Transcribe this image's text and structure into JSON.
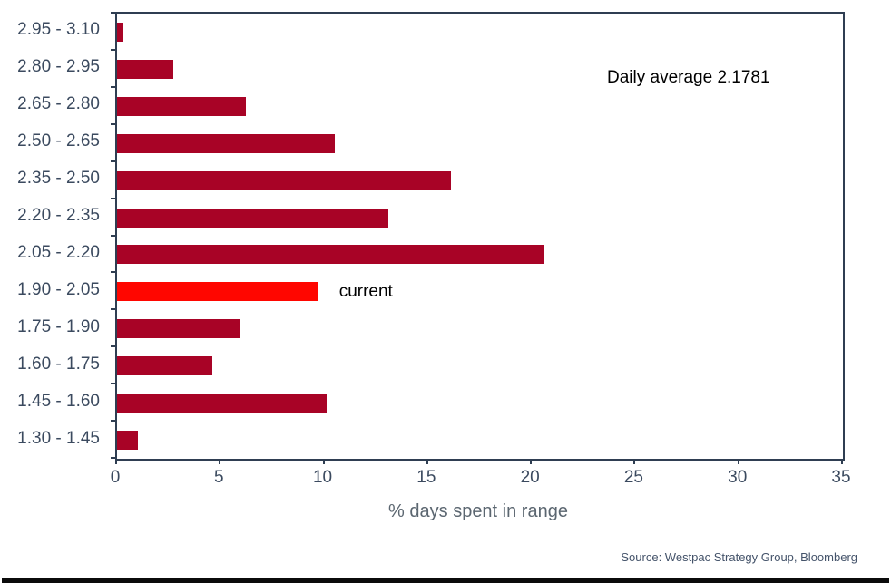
{
  "chart_data": {
    "type": "bar",
    "orientation": "horizontal",
    "title": "",
    "xlabel": "% days spent in range",
    "xlim": [
      0,
      35
    ],
    "x_ticks": [
      0,
      5,
      10,
      15,
      20,
      25,
      30,
      35
    ],
    "categories": [
      "2.95 - 3.10",
      "2.80 - 2.95",
      "2.65 - 2.80",
      "2.50 - 2.65",
      "2.35 - 2.50",
      "2.20 - 2.35",
      "2.05 - 2.20",
      "1.90 - 2.05",
      "1.75 - 1.90",
      "1.60 - 1.75",
      "1.45 - 1.60",
      "1.30 - 1.45"
    ],
    "values": [
      0.3,
      2.7,
      6.2,
      10.5,
      16.1,
      13.1,
      20.6,
      9.7,
      5.9,
      4.6,
      10.1,
      1.0
    ],
    "highlight": {
      "category": "1.90 - 2.05",
      "index": 7,
      "label": "current"
    },
    "annotations": {
      "daily_average": "Daily average 2.1781"
    },
    "source": "Source: Westpac Strategy Group, Bloomberg",
    "grid": "off",
    "legend": "none",
    "colors": {
      "bar": "#A80326",
      "highlight_bar": "#FF0600",
      "axis": "#2F3E52",
      "tick_label": "#3B4A5F",
      "xlabel": "#5B6670",
      "annotation": "#000000",
      "source": "#44536A"
    }
  }
}
